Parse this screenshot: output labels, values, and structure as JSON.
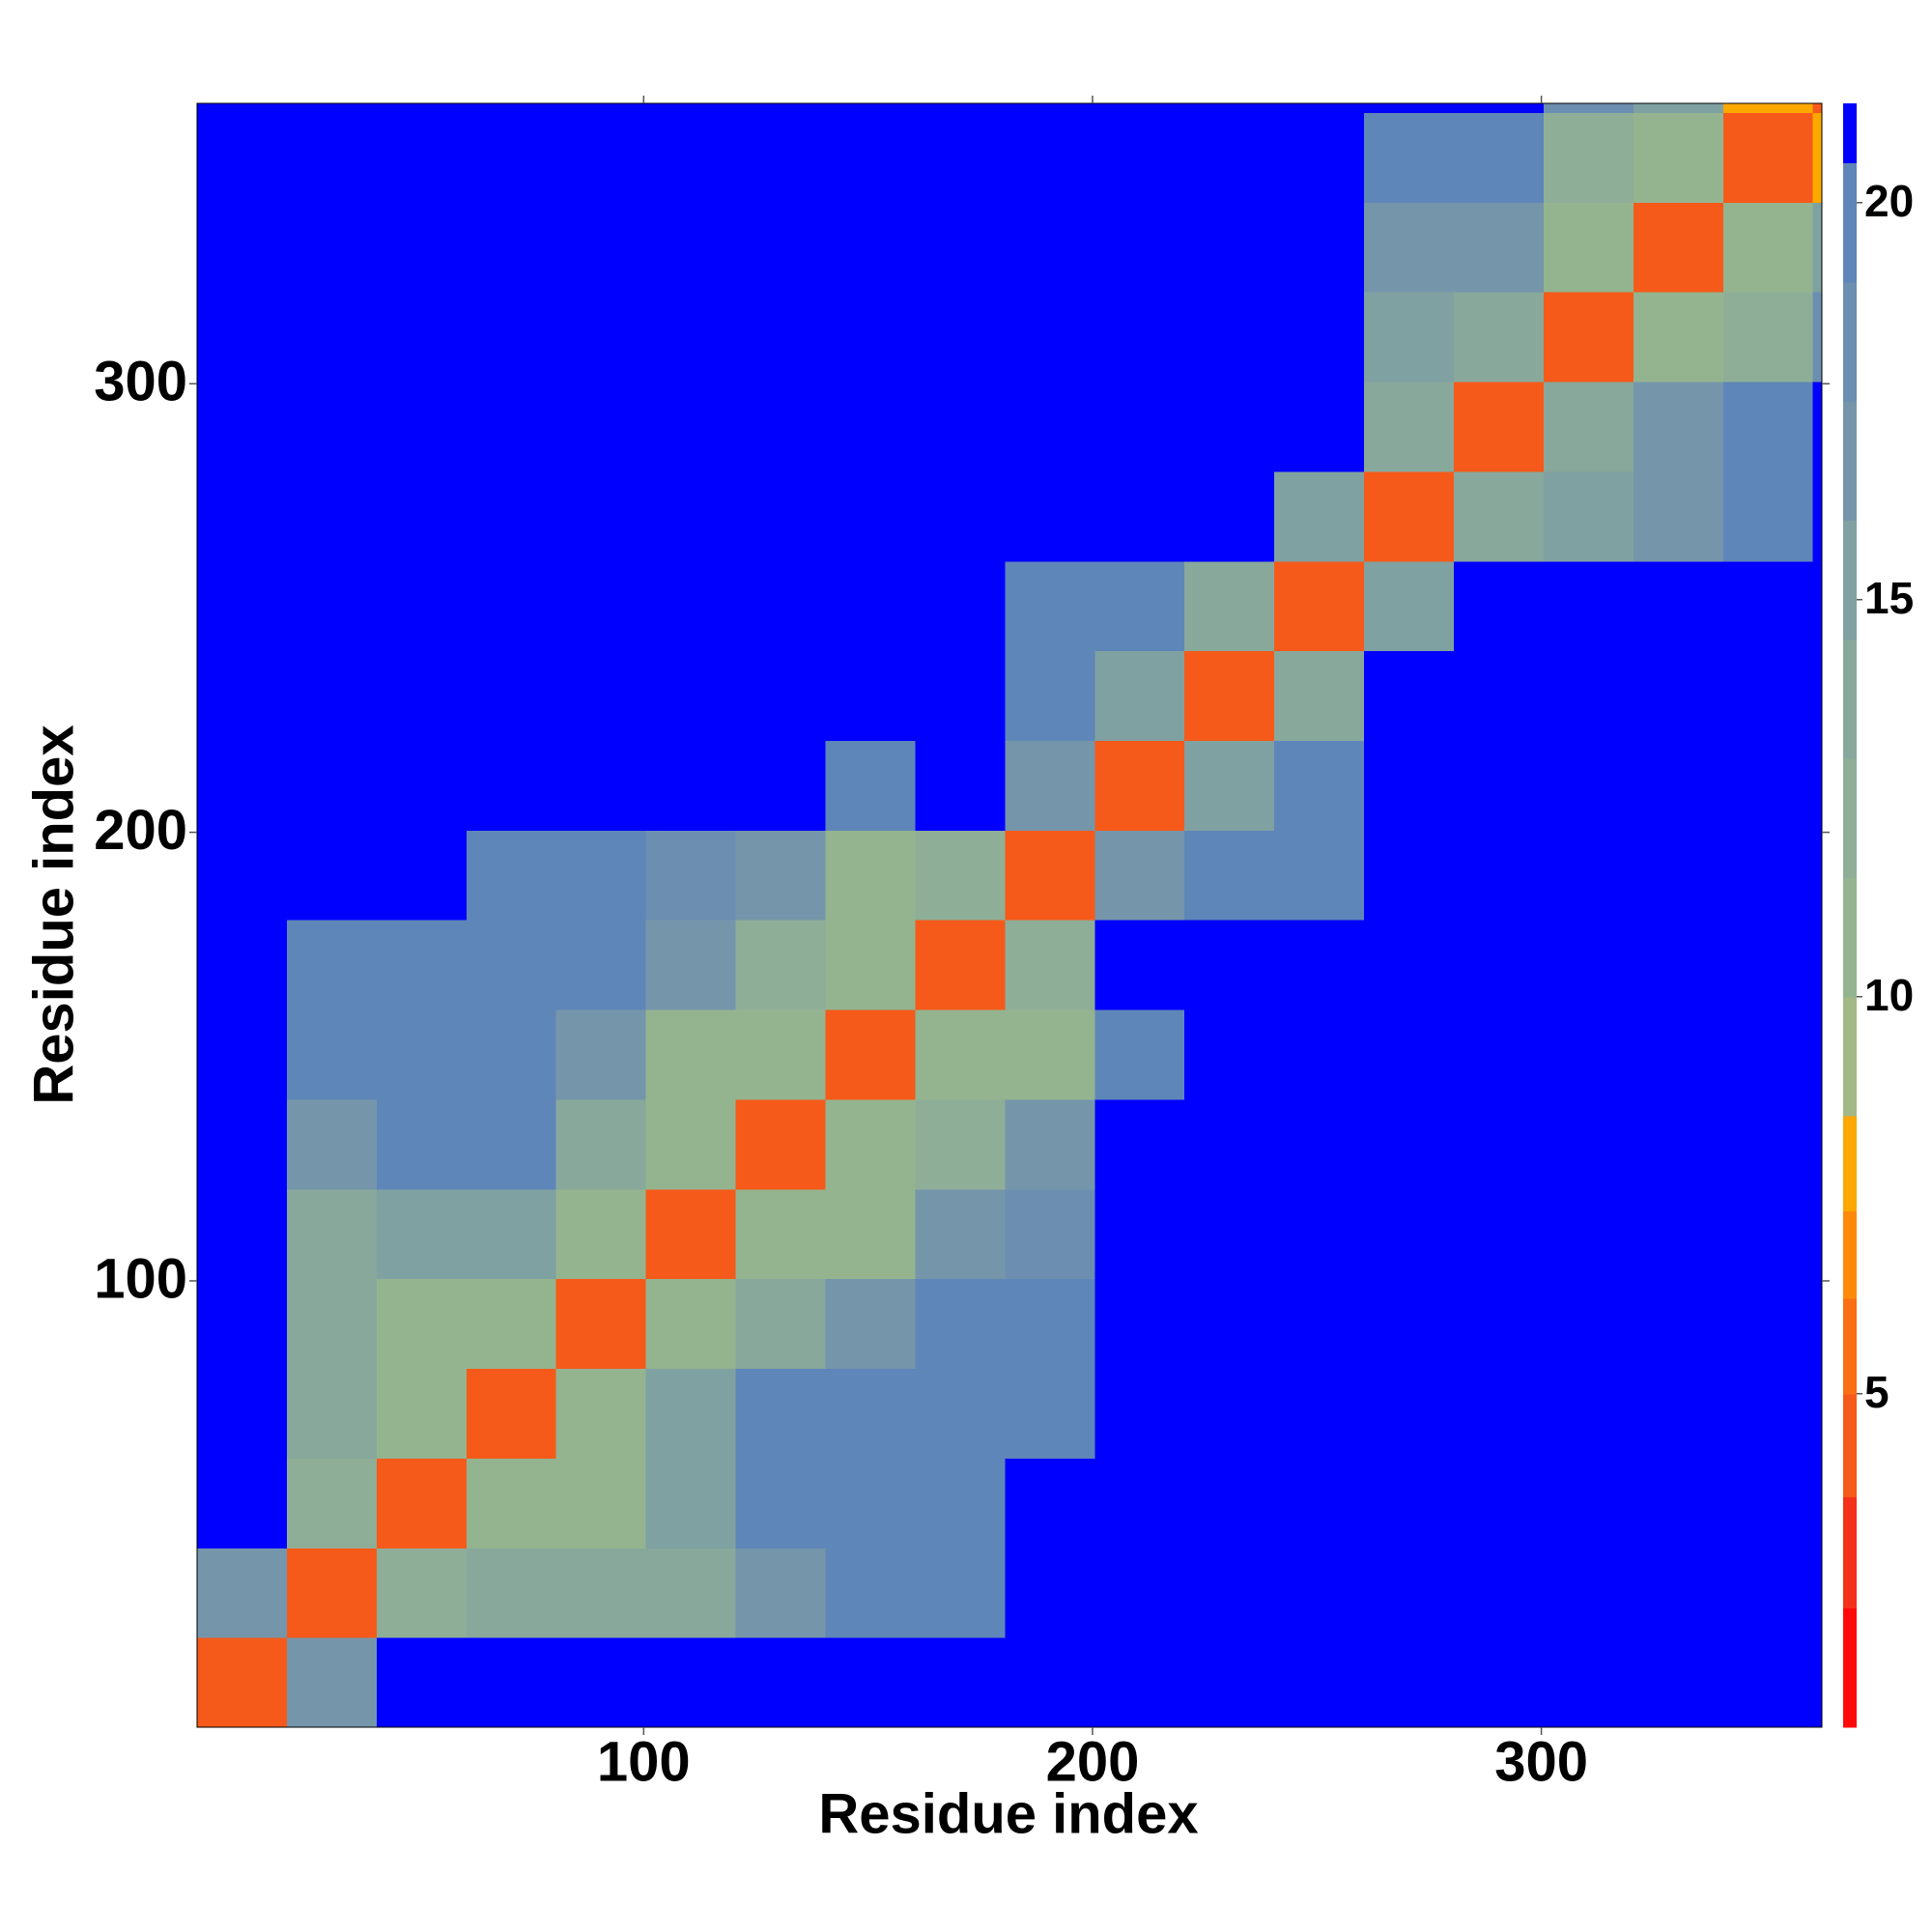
{
  "chart_data": {
    "type": "heatmap",
    "xlabel": "Residue index",
    "ylabel": "Residue index",
    "x_edges": [
      0.5,
      20.5,
      40.5,
      60.5,
      80.5,
      100.5,
      120.5,
      140.5,
      160.5,
      180.5,
      200.5,
      220.5,
      240.5,
      260.5,
      280.5,
      300.5,
      320.5,
      340.5,
      360.5,
      362.5
    ],
    "y_edges": [
      0.5,
      20.5,
      40.5,
      60.5,
      80.5,
      100.5,
      120.5,
      140.5,
      160.5,
      180.5,
      200.5,
      220.5,
      240.5,
      260.5,
      280.5,
      300.5,
      320.5,
      340.5,
      360.5,
      362.5
    ],
    "z": [
      [
        4,
        17,
        21,
        21,
        21,
        21,
        21,
        21,
        21,
        21,
        21,
        21,
        21,
        21,
        21,
        21,
        21,
        21,
        21
      ],
      [
        17,
        4,
        12,
        14,
        14,
        13,
        17,
        19,
        20,
        21,
        21,
        21,
        21,
        21,
        21,
        21,
        21,
        21,
        21
      ],
      [
        21,
        12,
        4,
        10,
        10,
        15,
        19,
        19,
        19,
        21,
        21,
        21,
        21,
        21,
        21,
        21,
        21,
        21,
        21
      ],
      [
        21,
        14,
        10,
        4,
        11,
        15,
        20,
        19,
        19,
        20,
        21,
        21,
        21,
        21,
        21,
        21,
        21,
        21,
        21
      ],
      [
        21,
        14,
        10,
        11,
        4,
        11,
        13,
        17,
        20,
        20,
        21,
        21,
        21,
        21,
        21,
        21,
        21,
        21,
        21
      ],
      [
        21,
        13,
        15,
        15,
        11,
        4,
        10,
        10,
        16,
        18,
        21,
        21,
        21,
        21,
        21,
        21,
        21,
        21,
        21
      ],
      [
        21,
        17,
        19,
        20,
        13,
        10,
        4,
        10,
        12,
        17,
        21,
        21,
        21,
        21,
        21,
        21,
        21,
        21,
        21
      ],
      [
        21,
        19,
        19,
        19,
        17,
        10,
        10,
        4,
        10,
        11,
        20,
        21,
        21,
        21,
        21,
        21,
        21,
        21,
        21
      ],
      [
        21,
        20,
        19,
        19,
        20,
        16,
        12,
        10,
        4,
        12,
        21,
        21,
        21,
        21,
        21,
        21,
        21,
        21,
        21
      ],
      [
        21,
        21,
        21,
        20,
        20,
        18,
        17,
        11,
        12,
        4,
        16,
        19,
        19,
        21,
        21,
        21,
        21,
        21,
        21
      ],
      [
        21,
        21,
        21,
        21,
        21,
        21,
        21,
        20,
        21,
        16,
        4,
        15,
        20,
        21,
        21,
        21,
        21,
        21,
        21
      ],
      [
        21,
        21,
        21,
        21,
        21,
        21,
        21,
        21,
        21,
        19,
        15,
        4,
        13,
        21,
        21,
        21,
        21,
        21,
        21
      ],
      [
        21,
        21,
        21,
        21,
        21,
        21,
        21,
        21,
        21,
        19,
        20,
        13,
        4,
        15,
        21,
        21,
        21,
        21,
        21
      ],
      [
        21,
        21,
        21,
        21,
        21,
        21,
        21,
        21,
        21,
        21,
        21,
        21,
        15,
        4,
        14,
        15,
        17,
        20,
        21
      ],
      [
        21,
        21,
        21,
        21,
        21,
        21,
        21,
        21,
        21,
        21,
        21,
        21,
        21,
        14,
        4,
        14,
        17,
        20,
        21
      ],
      [
        21,
        21,
        21,
        21,
        21,
        21,
        21,
        21,
        21,
        21,
        21,
        21,
        21,
        15,
        14,
        4,
        11,
        12,
        18
      ],
      [
        21,
        21,
        21,
        21,
        21,
        21,
        21,
        21,
        21,
        21,
        21,
        21,
        21,
        17,
        17,
        11,
        4,
        10,
        15
      ],
      [
        21,
        21,
        21,
        21,
        21,
        21,
        21,
        21,
        21,
        21,
        21,
        21,
        21,
        20,
        20,
        12,
        10,
        4,
        8
      ],
      [
        21,
        21,
        21,
        21,
        21,
        21,
        21,
        21,
        21,
        21,
        21,
        21,
        21,
        21,
        21,
        18,
        15,
        8,
        4
      ]
    ],
    "xlim": [
      0.5,
      362.5
    ],
    "ylim": [
      0.5,
      362.5
    ],
    "xticks": [
      100,
      200,
      300
    ],
    "yticks": [
      100,
      200,
      300
    ],
    "colorbar": {
      "boundaries": [
        0.8,
        2.3,
        3.7,
        5,
        6.2,
        7.3,
        8.5,
        10,
        11.5,
        13,
        14.5,
        16,
        17.5,
        19,
        20.5,
        21.25
      ],
      "colors": [
        "#ff0a0a",
        "#f5301a",
        "#f55a1a",
        "#fa6e14",
        "#fd8a0a",
        "#fca800",
        "#a2b886",
        "#94b490",
        "#8fae97",
        "#88a89c",
        "#7fa1a1",
        "#7596aa",
        "#6c8eb1",
        "#5f86b8",
        "#0000ff"
      ],
      "ticks": [
        5,
        10,
        15,
        20
      ]
    }
  }
}
